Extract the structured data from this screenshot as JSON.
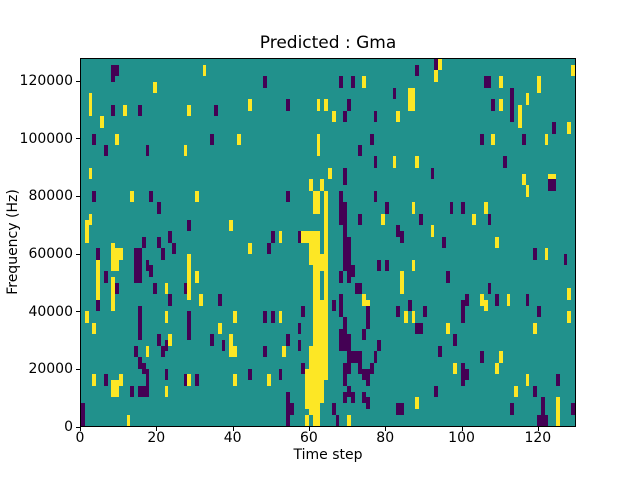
{
  "figure": {
    "title": "Predicted : Gma",
    "xlabel": "Time step",
    "ylabel": "Frequency (Hz)"
  },
  "chart_data": {
    "type": "heatmap",
    "title": "Predicted : Gma",
    "xlabel": "Time step",
    "ylabel": "Frequency (Hz)",
    "legend": "none",
    "grid": "off",
    "x_range": [
      0,
      130
    ],
    "y_range": [
      0,
      128000
    ],
    "grid_cols": 130,
    "grid_rows": 64,
    "hz_per_row": 2000,
    "x_ticks": [
      0,
      20,
      40,
      60,
      80,
      100,
      120
    ],
    "x_tick_labels": [
      "0",
      "20",
      "40",
      "60",
      "80",
      "100",
      "120"
    ],
    "y_ticks": [
      0,
      20000,
      40000,
      60000,
      80000,
      100000,
      120000
    ],
    "y_tick_labels": [
      "0",
      "20000",
      "40000",
      "60000",
      "80000",
      "100000",
      "120000"
    ],
    "colors": {
      "background_value": "#21918c",
      "high_value": "#fde725",
      "low_value": "#440154"
    },
    "cells_high_spans": [
      [
        32,
        61,
        62
      ],
      [
        19,
        58,
        59
      ],
      [
        2,
        54,
        57
      ],
      [
        11,
        54,
        55
      ],
      [
        28,
        54,
        55
      ],
      [
        5,
        52,
        53
      ],
      [
        9,
        49,
        50
      ],
      [
        27,
        47,
        48
      ],
      [
        41,
        49,
        50
      ],
      [
        2,
        43,
        44
      ],
      [
        74,
        59,
        60
      ],
      [
        86,
        55,
        58
      ],
      [
        44,
        55,
        56
      ],
      [
        62,
        55,
        56
      ],
      [
        64,
        55,
        56
      ],
      [
        66,
        53,
        54
      ],
      [
        83,
        53,
        54
      ],
      [
        62,
        47,
        50
      ],
      [
        82,
        45,
        46
      ],
      [
        65,
        43,
        44
      ],
      [
        94,
        62,
        63
      ],
      [
        93,
        60,
        61
      ],
      [
        129,
        61,
        62
      ],
      [
        110,
        59,
        60
      ],
      [
        120,
        58,
        60
      ],
      [
        87,
        55,
        58
      ],
      [
        110,
        55,
        56
      ],
      [
        117,
        56,
        57
      ],
      [
        115,
        52,
        55
      ],
      [
        128,
        51,
        52
      ],
      [
        108,
        49,
        50
      ],
      [
        122,
        49,
        50
      ],
      [
        88,
        45,
        46
      ],
      [
        116,
        42,
        43
      ],
      [
        123,
        42,
        43
      ],
      [
        124,
        42,
        43
      ],
      [
        13,
        39,
        40
      ],
      [
        30,
        39,
        40
      ],
      [
        2,
        35,
        36
      ],
      [
        1,
        32,
        35
      ],
      [
        39,
        34,
        35
      ],
      [
        28,
        22,
        29
      ],
      [
        8,
        27,
        31
      ],
      [
        9,
        27,
        30
      ],
      [
        10,
        29,
        30
      ],
      [
        4,
        22,
        28
      ],
      [
        22,
        23,
        24
      ],
      [
        30,
        25,
        26
      ],
      [
        31,
        21,
        22
      ],
      [
        60,
        41,
        42
      ],
      [
        63,
        41,
        42
      ],
      [
        61,
        37,
        40
      ],
      [
        62,
        37,
        40
      ],
      [
        64,
        39,
        40
      ],
      [
        52,
        32,
        33
      ],
      [
        44,
        30,
        31
      ],
      [
        58,
        32,
        33
      ],
      [
        59,
        32,
        33
      ],
      [
        60,
        28,
        33
      ],
      [
        61,
        22,
        33
      ],
      [
        62,
        22,
        33
      ],
      [
        63,
        27,
        29
      ],
      [
        64,
        8,
        40
      ],
      [
        79,
        35,
        36
      ],
      [
        84,
        23,
        26
      ],
      [
        74,
        21,
        22
      ],
      [
        117,
        40,
        41
      ],
      [
        87,
        37,
        38
      ],
      [
        103,
        35,
        36
      ],
      [
        106,
        37,
        38
      ],
      [
        92,
        33,
        34
      ],
      [
        109,
        31,
        32
      ],
      [
        122,
        29,
        30
      ],
      [
        87,
        27,
        28
      ],
      [
        128,
        22,
        23
      ],
      [
        105,
        21,
        22
      ],
      [
        112,
        21,
        22
      ],
      [
        8,
        20,
        25
      ],
      [
        1,
        18,
        19
      ],
      [
        3,
        16,
        17
      ],
      [
        22,
        18,
        19
      ],
      [
        40,
        18,
        19
      ],
      [
        36,
        16,
        17
      ],
      [
        23,
        14,
        15
      ],
      [
        39,
        12,
        15
      ],
      [
        40,
        12,
        13
      ],
      [
        17,
        12,
        13
      ],
      [
        3,
        7,
        8
      ],
      [
        10,
        7,
        8
      ],
      [
        8,
        5,
        7
      ],
      [
        9,
        5,
        7
      ],
      [
        22,
        5,
        6
      ],
      [
        28,
        7,
        8
      ],
      [
        40,
        7,
        8
      ],
      [
        12,
        0,
        1
      ],
      [
        52,
        18,
        19
      ],
      [
        53,
        12,
        13
      ],
      [
        49,
        7,
        8
      ],
      [
        59,
        3,
        9
      ],
      [
        59,
        0,
        1
      ],
      [
        60,
        2,
        13
      ],
      [
        61,
        0,
        21
      ],
      [
        62,
        0,
        21
      ],
      [
        63,
        4,
        21
      ],
      [
        70,
        0,
        1
      ],
      [
        75,
        20,
        21
      ],
      [
        85,
        18,
        19
      ],
      [
        87,
        18,
        19
      ],
      [
        106,
        20,
        21
      ],
      [
        128,
        18,
        19
      ],
      [
        96,
        16,
        17
      ],
      [
        119,
        16,
        17
      ],
      [
        110,
        11,
        12
      ],
      [
        109,
        9,
        10
      ],
      [
        98,
        9,
        10
      ],
      [
        117,
        7,
        8
      ],
      [
        114,
        5,
        6
      ],
      [
        88,
        3,
        4
      ],
      [
        125,
        0,
        4
      ]
    ],
    "cells_low_spans": [
      [
        8,
        60,
        62
      ],
      [
        9,
        61,
        62
      ],
      [
        8,
        54,
        55
      ],
      [
        15,
        54,
        55
      ],
      [
        35,
        54,
        55
      ],
      [
        3,
        49,
        50
      ],
      [
        6,
        47,
        48
      ],
      [
        17,
        47,
        48
      ],
      [
        34,
        49,
        50
      ],
      [
        48,
        59,
        60
      ],
      [
        68,
        59,
        60
      ],
      [
        71,
        59,
        60
      ],
      [
        82,
        57,
        58
      ],
      [
        54,
        55,
        56
      ],
      [
        70,
        55,
        56
      ],
      [
        69,
        53,
        54
      ],
      [
        77,
        53,
        54
      ],
      [
        76,
        49,
        50
      ],
      [
        73,
        47,
        48
      ],
      [
        77,
        45,
        46
      ],
      [
        69,
        42,
        44
      ],
      [
        93,
        62,
        63
      ],
      [
        88,
        61,
        62
      ],
      [
        106,
        59,
        60
      ],
      [
        107,
        59,
        60
      ],
      [
        113,
        57,
        58
      ],
      [
        113,
        53,
        56
      ],
      [
        108,
        55,
        56
      ],
      [
        124,
        51,
        52
      ],
      [
        105,
        49,
        50
      ],
      [
        116,
        49,
        50
      ],
      [
        111,
        45,
        46
      ],
      [
        92,
        43,
        44
      ],
      [
        3,
        39,
        40
      ],
      [
        18,
        39,
        40
      ],
      [
        20,
        37,
        38
      ],
      [
        28,
        34,
        35
      ],
      [
        16,
        31,
        32
      ],
      [
        20,
        31,
        32
      ],
      [
        4,
        29,
        30
      ],
      [
        14,
        25,
        30
      ],
      [
        15,
        25,
        30
      ],
      [
        17,
        27,
        28
      ],
      [
        18,
        26,
        27
      ],
      [
        21,
        29,
        30
      ],
      [
        23,
        32,
        33
      ],
      [
        24,
        30,
        31
      ],
      [
        6,
        25,
        26
      ],
      [
        9,
        23,
        24
      ],
      [
        19,
        23,
        24
      ],
      [
        27,
        23,
        24
      ],
      [
        23,
        21,
        22
      ],
      [
        36,
        21,
        22
      ],
      [
        54,
        39,
        40
      ],
      [
        68,
        35,
        40
      ],
      [
        69,
        33,
        38
      ],
      [
        77,
        39,
        40
      ],
      [
        80,
        37,
        38
      ],
      [
        73,
        35,
        36
      ],
      [
        83,
        33,
        34
      ],
      [
        84,
        32,
        33
      ],
      [
        50,
        32,
        33
      ],
      [
        49,
        30,
        31
      ],
      [
        57,
        32,
        33
      ],
      [
        69,
        27,
        32
      ],
      [
        70,
        25,
        32
      ],
      [
        68,
        25,
        26
      ],
      [
        71,
        26,
        27
      ],
      [
        72,
        23,
        24
      ],
      [
        73,
        23,
        24
      ],
      [
        78,
        27,
        28
      ],
      [
        80,
        27,
        28
      ],
      [
        68,
        21,
        22
      ],
      [
        123,
        41,
        42
      ],
      [
        124,
        41,
        42
      ],
      [
        89,
        35,
        36
      ],
      [
        97,
        37,
        38
      ],
      [
        100,
        37,
        38
      ],
      [
        107,
        35,
        36
      ],
      [
        95,
        31,
        32
      ],
      [
        119,
        29,
        30
      ],
      [
        127,
        28,
        29
      ],
      [
        96,
        25,
        26
      ],
      [
        107,
        23,
        24
      ],
      [
        101,
        21,
        22
      ],
      [
        109,
        21,
        22
      ],
      [
        117,
        21,
        22
      ],
      [
        15,
        15,
        20
      ],
      [
        28,
        15,
        19
      ],
      [
        20,
        14,
        15
      ],
      [
        22,
        13,
        14
      ],
      [
        34,
        14,
        15
      ],
      [
        37,
        13,
        14
      ],
      [
        14,
        12,
        13
      ],
      [
        21,
        12,
        13
      ],
      [
        15,
        10,
        11
      ],
      [
        16,
        9,
        10
      ],
      [
        17,
        7,
        9
      ],
      [
        6,
        7,
        8
      ],
      [
        13,
        5,
        6
      ],
      [
        15,
        5,
        6
      ],
      [
        16,
        5,
        6
      ],
      [
        17,
        5,
        6
      ],
      [
        22,
        8,
        9
      ],
      [
        27,
        7,
        8
      ],
      [
        30,
        7,
        8
      ],
      [
        0,
        0,
        3
      ],
      [
        4,
        20,
        21
      ],
      [
        48,
        18,
        19
      ],
      [
        50,
        18,
        19
      ],
      [
        57,
        16,
        17
      ],
      [
        54,
        14,
        15
      ],
      [
        48,
        12,
        13
      ],
      [
        57,
        13,
        14
      ],
      [
        58,
        9,
        10
      ],
      [
        44,
        8,
        9
      ],
      [
        52,
        8,
        9
      ],
      [
        54,
        4,
        5
      ],
      [
        54,
        2,
        3
      ],
      [
        55,
        2,
        3
      ],
      [
        54,
        0,
        1
      ],
      [
        58,
        19,
        20
      ],
      [
        66,
        20,
        21
      ],
      [
        68,
        19,
        20
      ],
      [
        69,
        17,
        18
      ],
      [
        68,
        13,
        16
      ],
      [
        69,
        13,
        16
      ],
      [
        70,
        11,
        15
      ],
      [
        71,
        11,
        12
      ],
      [
        72,
        11,
        12
      ],
      [
        73,
        11,
        12
      ],
      [
        69,
        9,
        10
      ],
      [
        70,
        9,
        10
      ],
      [
        73,
        9,
        10
      ],
      [
        74,
        8,
        9
      ],
      [
        75,
        8,
        9
      ],
      [
        69,
        7,
        8
      ],
      [
        70,
        5,
        6
      ],
      [
        69,
        4,
        5
      ],
      [
        71,
        4,
        5
      ],
      [
        74,
        4,
        5
      ],
      [
        75,
        7,
        8
      ],
      [
        76,
        9,
        10
      ],
      [
        77,
        11,
        12
      ],
      [
        78,
        13,
        14
      ],
      [
        74,
        15,
        16
      ],
      [
        75,
        17,
        20
      ],
      [
        83,
        19,
        20
      ],
      [
        86,
        20,
        21
      ],
      [
        66,
        2,
        3
      ],
      [
        67,
        0,
        1
      ],
      [
        75,
        3,
        4
      ],
      [
        83,
        2,
        3
      ],
      [
        84,
        2,
        3
      ],
      [
        90,
        19,
        20
      ],
      [
        100,
        18,
        21
      ],
      [
        120,
        19,
        20
      ],
      [
        88,
        16,
        17
      ],
      [
        89,
        16,
        17
      ],
      [
        98,
        14,
        15
      ],
      [
        94,
        12,
        13
      ],
      [
        105,
        11,
        12
      ],
      [
        100,
        7,
        10
      ],
      [
        101,
        8,
        9
      ],
      [
        119,
        5,
        6
      ],
      [
        125,
        7,
        8
      ],
      [
        93,
        5,
        6
      ],
      [
        113,
        2,
        3
      ],
      [
        121,
        0,
        4
      ],
      [
        120,
        0,
        1
      ],
      [
        122,
        0,
        1
      ],
      [
        129,
        2,
        3
      ]
    ]
  }
}
